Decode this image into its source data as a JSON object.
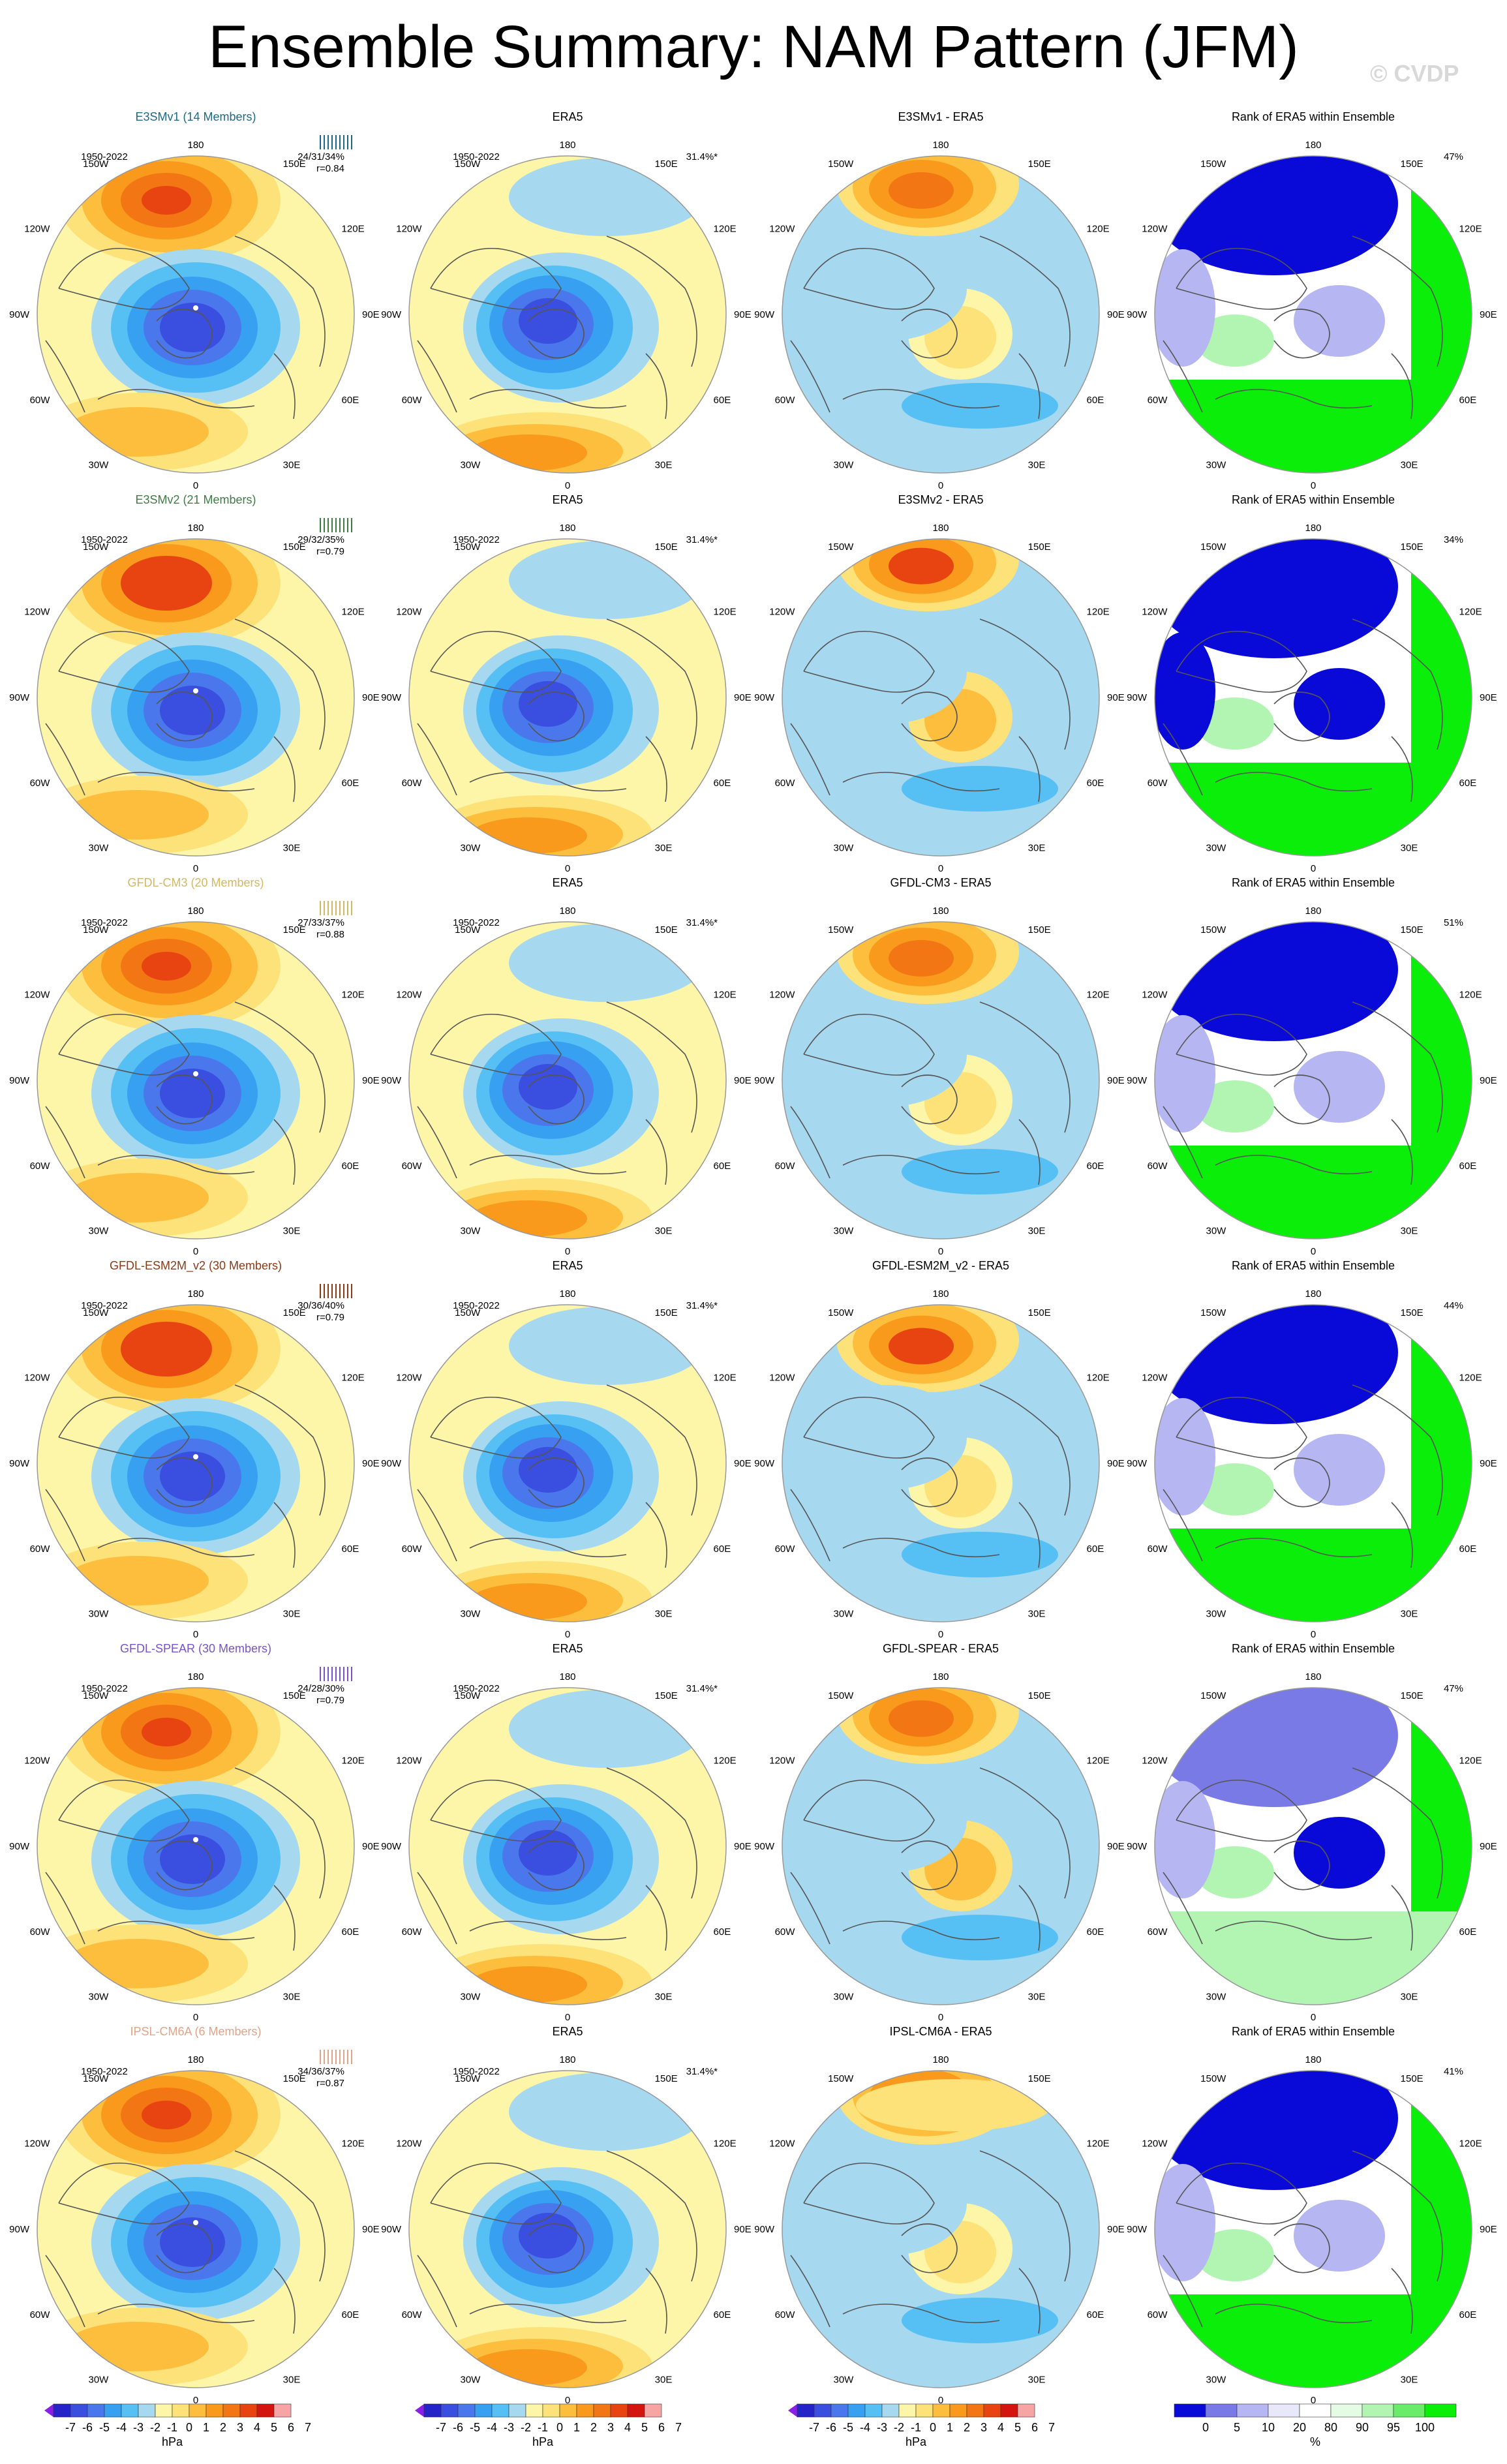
{
  "figure": {
    "title": "Ensemble Summary: NAM Pattern (JFM)",
    "watermark": "© CVDP",
    "period": "1950-2022"
  },
  "colors": {
    "pattern_scale": [
      "#8a1fe8",
      "#2424c8",
      "#3a4ee0",
      "#4a78ec",
      "#38a0f0",
      "#56c0f4",
      "#a6d8f0",
      "#fdf5a8",
      "#fde27a",
      "#fdbe3e",
      "#f99a1c",
      "#f27614",
      "#e84412",
      "#d4140e",
      "#f7a4a4"
    ],
    "rank_scale": [
      "#0a0ad8",
      "#7a7ae6",
      "#b6b6f2",
      "#e8e8fa",
      "#ffffff",
      "#e4fbe4",
      "#b2f4b2",
      "#6aec6a",
      "#0aee0a"
    ],
    "neg_contour": "#1e6fe4",
    "pos_contour": "#e03c10",
    "coast": "#555555"
  },
  "models": [
    {
      "name": "E3SMv1 (14 Members)",
      "short": "E3SMv1",
      "color": "#1d6a86",
      "stats": "24/31/34%",
      "r": "r=0.84",
      "rank_pct": "47%",
      "era_pct": "31.4%*"
    },
    {
      "name": "E3SMv2 (21 Members)",
      "short": "E3SMv2",
      "color": "#3f7c44",
      "stats": "29/32/35%",
      "r": "r=0.79",
      "rank_pct": "34%",
      "era_pct": "31.4%*"
    },
    {
      "name": "GFDL-CM3 (20 Members)",
      "short": "GFDL-CM3",
      "color": "#d2b862",
      "stats": "27/33/37%",
      "r": "r=0.88",
      "rank_pct": "51%",
      "era_pct": "31.4%*"
    },
    {
      "name": "GFDL-ESM2M_v2 (30 Members)",
      "short": "GFDL-ESM2M_v2",
      "color": "#8a3a14",
      "stats": "30/36/40%",
      "r": "r=0.79",
      "rank_pct": "44%",
      "era_pct": "31.4%*"
    },
    {
      "name": "GFDL-SPEAR (30 Members)",
      "short": "GFDL-SPEAR",
      "color": "#7a52c8",
      "stats": "24/28/30%",
      "r": "r=0.79",
      "rank_pct": "47%",
      "era_pct": "31.4%*"
    },
    {
      "name": "IPSL-CM6A (6 Members)",
      "short": "IPSL-CM6A",
      "color": "#e0a488",
      "stats": "34/36/37%",
      "r": "r=0.87",
      "rank_pct": "41%",
      "era_pct": "31.4%*"
    }
  ],
  "panel_titles": {
    "obs": "ERA5",
    "diff_suffix": " - ERA5",
    "rank": "Rank of ERA5 within Ensemble"
  },
  "map_labels": {
    "top": "180",
    "bottom": "0",
    "left": "90W",
    "right": "90E",
    "upper_left": "150W",
    "upper_right": "150E",
    "mid_upper_left": "120W",
    "mid_upper_right": "120E",
    "mid_lower_left": "60W",
    "mid_lower_right": "60E",
    "lower_left": "30W",
    "lower_right": "30E"
  },
  "chart_data": {
    "type": "heatmap",
    "projection": "polar stereographic, Northern Hemisphere",
    "colorbar_pattern": {
      "ticks": [
        "-7",
        "-6",
        "-5",
        "-4",
        "-3",
        "-2",
        "-1",
        "0",
        "1",
        "2",
        "3",
        "4",
        "5",
        "6",
        "7"
      ],
      "unit": "hPa"
    },
    "colorbar_rank": {
      "ticks": [
        "0",
        "5",
        "10",
        "20",
        "80",
        "90",
        "95",
        "100"
      ],
      "unit": "%"
    }
  }
}
